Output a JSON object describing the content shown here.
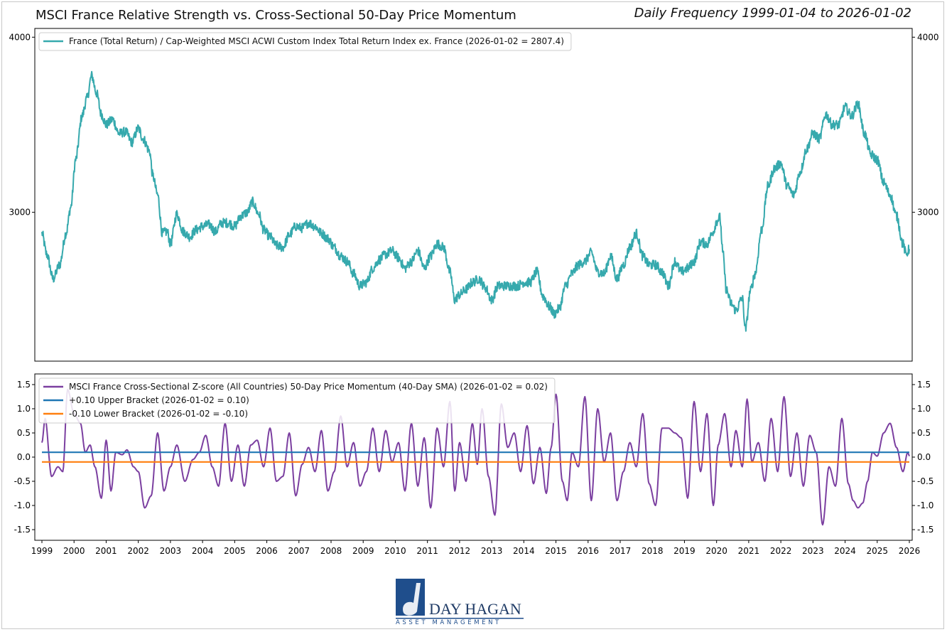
{
  "header": {
    "title": "MSCI France Relative Strength vs. Cross-Sectional 50-Day Price Momentum",
    "subtitle": "Daily Frequency 1999-01-04 to 2026-01-02"
  },
  "logo": {
    "name": "DAY HAGAN",
    "tagline": "ASSET MANAGEMENT",
    "colors": {
      "primary": "#1f4e8c"
    }
  },
  "chart_data": [
    {
      "type": "line",
      "panel": "top",
      "x_range": [
        1999.0,
        2026.0
      ],
      "ylim": [
        2150,
        4050
      ],
      "yticks": [
        "3000",
        "4000"
      ],
      "legend_position": "top-left",
      "grid": false,
      "series": [
        {
          "name": "France (Total Return) / Cap-Weighted MSCI ACWI Custom Index Total Return Index ex. France (2026-01-02 = 2807.4)",
          "color": "#36a9ad",
          "x": [
            1999.0,
            1999.15,
            1999.35,
            1999.55,
            1999.75,
            1999.9,
            2000.05,
            2000.25,
            2000.4,
            2000.55,
            2000.7,
            2000.85,
            2001.0,
            2001.2,
            2001.4,
            2001.6,
            2001.8,
            2002.0,
            2002.15,
            2002.35,
            2002.45,
            2002.6,
            2002.75,
            2002.9,
            2003.0,
            2003.2,
            2003.4,
            2003.6,
            2003.8,
            2004.0,
            2004.2,
            2004.4,
            2004.6,
            2004.8,
            2005.0,
            2005.2,
            2005.4,
            2005.55,
            2005.75,
            2005.9,
            2006.1,
            2006.3,
            2006.5,
            2006.7,
            2006.9,
            2007.1,
            2007.3,
            2007.5,
            2007.7,
            2007.9,
            2008.1,
            2008.3,
            2008.5,
            2008.7,
            2008.9,
            2009.1,
            2009.3,
            2009.5,
            2009.7,
            2009.9,
            2010.1,
            2010.3,
            2010.5,
            2010.7,
            2010.9,
            2011.1,
            2011.3,
            2011.5,
            2011.7,
            2011.85,
            2012.0,
            2012.2,
            2012.4,
            2012.6,
            2012.8,
            2013.0,
            2013.2,
            2013.4,
            2013.6,
            2013.8,
            2014.0,
            2014.2,
            2014.4,
            2014.6,
            2014.8,
            2014.95,
            2015.1,
            2015.3,
            2015.5,
            2015.7,
            2015.9,
            2016.1,
            2016.3,
            2016.5,
            2016.7,
            2016.9,
            2017.1,
            2017.3,
            2017.5,
            2017.7,
            2017.9,
            2018.1,
            2018.3,
            2018.5,
            2018.7,
            2018.9,
            2019.1,
            2019.3,
            2019.5,
            2019.7,
            2019.9,
            2020.0,
            2020.1,
            2020.2,
            2020.3,
            2020.45,
            2020.6,
            2020.8,
            2020.9,
            2021.05,
            2021.2,
            2021.4,
            2021.6,
            2021.8,
            2022.0,
            2022.2,
            2022.4,
            2022.6,
            2022.8,
            2023.0,
            2023.2,
            2023.4,
            2023.6,
            2023.8,
            2024.0,
            2024.2,
            2024.4,
            2024.6,
            2024.8,
            2025.0,
            2025.2,
            2025.4,
            2025.6,
            2025.8,
            2025.9,
            2026.0
          ],
          "y": [
            2880,
            2760,
            2620,
            2700,
            2880,
            3030,
            3300,
            3550,
            3650,
            3780,
            3680,
            3560,
            3500,
            3530,
            3450,
            3460,
            3400,
            3480,
            3420,
            3350,
            3210,
            3100,
            2880,
            2890,
            2820,
            2990,
            2890,
            2860,
            2900,
            2920,
            2930,
            2890,
            2940,
            2940,
            2920,
            2980,
            3000,
            3060,
            2990,
            2900,
            2860,
            2810,
            2800,
            2870,
            2920,
            2910,
            2940,
            2920,
            2880,
            2850,
            2800,
            2750,
            2720,
            2650,
            2580,
            2600,
            2680,
            2730,
            2760,
            2780,
            2740,
            2680,
            2720,
            2780,
            2680,
            2750,
            2820,
            2800,
            2660,
            2500,
            2530,
            2560,
            2600,
            2620,
            2570,
            2500,
            2580,
            2580,
            2580,
            2580,
            2600,
            2600,
            2660,
            2520,
            2460,
            2420,
            2450,
            2580,
            2650,
            2700,
            2720,
            2770,
            2660,
            2650,
            2750,
            2620,
            2700,
            2800,
            2880,
            2750,
            2700,
            2700,
            2660,
            2580,
            2720,
            2660,
            2680,
            2720,
            2830,
            2820,
            2890,
            2950,
            2970,
            2760,
            2560,
            2480,
            2440,
            2510,
            2330,
            2550,
            2650,
            2900,
            3150,
            3250,
            3280,
            3150,
            3100,
            3230,
            3360,
            3450,
            3420,
            3560,
            3500,
            3500,
            3600,
            3550,
            3620,
            3450,
            3330,
            3300,
            3170,
            3100,
            2980,
            2820,
            2760,
            2790
          ]
        }
      ]
    },
    {
      "type": "line",
      "panel": "bottom",
      "x_range": [
        1999.0,
        2026.0
      ],
      "ylim": [
        -1.72,
        1.72
      ],
      "yticks": [
        "1.5",
        "1.0",
        "0.5",
        "0.0",
        "-0.5",
        "-1.0",
        "-1.5"
      ],
      "xticks": [
        "1999",
        "2000",
        "2001",
        "2002",
        "2003",
        "2004",
        "2005",
        "2006",
        "2007",
        "2008",
        "2009",
        "2010",
        "2011",
        "2012",
        "2013",
        "2014",
        "2015",
        "2016",
        "2017",
        "2018",
        "2019",
        "2020",
        "2021",
        "2022",
        "2023",
        "2024",
        "2025",
        "2026"
      ],
      "legend_position": "top-left",
      "grid": false,
      "series": [
        {
          "name": "MSCI France Cross-Sectional Z-score (All Countries) 50-Day Price Momentum (40-Day SMA) (2026-01-02 = 0.02)",
          "color": "#7b3fa0",
          "x": [
            1999.0,
            1999.1,
            1999.3,
            1999.5,
            1999.65,
            1999.8,
            2000.0,
            2000.2,
            2000.35,
            2000.5,
            2000.65,
            2000.85,
            2001.0,
            2001.15,
            2001.3,
            2001.5,
            2001.65,
            2001.85,
            2002.0,
            2002.2,
            2002.4,
            2002.6,
            2002.8,
            2003.0,
            2003.2,
            2003.45,
            2003.7,
            2003.9,
            2004.1,
            2004.3,
            2004.5,
            2004.7,
            2004.9,
            2005.1,
            2005.3,
            2005.5,
            2005.7,
            2005.9,
            2006.1,
            2006.3,
            2006.5,
            2006.7,
            2006.9,
            2007.1,
            2007.3,
            2007.5,
            2007.7,
            2007.9,
            2008.1,
            2008.3,
            2008.5,
            2008.7,
            2008.9,
            2009.1,
            2009.3,
            2009.5,
            2009.7,
            2009.9,
            2010.1,
            2010.3,
            2010.5,
            2010.7,
            2010.9,
            2011.1,
            2011.3,
            2011.5,
            2011.7,
            2011.85,
            2012.0,
            2012.2,
            2012.4,
            2012.55,
            2012.7,
            2012.9,
            2013.1,
            2013.3,
            2013.5,
            2013.7,
            2013.9,
            2014.1,
            2014.3,
            2014.5,
            2014.7,
            2014.85,
            2015.0,
            2015.2,
            2015.35,
            2015.5,
            2015.7,
            2015.9,
            2016.1,
            2016.3,
            2016.5,
            2016.7,
            2016.9,
            2017.1,
            2017.3,
            2017.5,
            2017.7,
            2017.9,
            2018.1,
            2018.3,
            2018.5,
            2018.7,
            2018.9,
            2019.1,
            2019.3,
            2019.5,
            2019.7,
            2019.9,
            2020.05,
            2020.25,
            2020.45,
            2020.6,
            2020.8,
            2020.95,
            2021.1,
            2021.3,
            2021.5,
            2021.7,
            2021.9,
            2022.1,
            2022.3,
            2022.5,
            2022.7,
            2022.9,
            2023.1,
            2023.3,
            2023.5,
            2023.7,
            2023.9,
            2024.1,
            2024.25,
            2024.4,
            2024.55,
            2024.7,
            2024.85,
            2025.0,
            2025.2,
            2025.4,
            2025.6,
            2025.8,
            2025.95,
            2026.0
          ],
          "y": [
            0.3,
            0.8,
            -0.4,
            -0.2,
            -0.3,
            1.4,
            0.9,
            0.7,
            0.1,
            0.25,
            -0.2,
            -0.85,
            0.35,
            -0.7,
            0.1,
            0.05,
            0.15,
            -0.2,
            -0.3,
            -1.05,
            -0.8,
            0.5,
            -0.7,
            -0.2,
            0.25,
            -0.5,
            -0.05,
            0.1,
            0.45,
            -0.2,
            -0.6,
            0.7,
            -0.5,
            0.25,
            -0.6,
            0.25,
            0.35,
            -0.2,
            0.6,
            -0.5,
            -0.4,
            0.5,
            -0.8,
            -0.15,
            0.2,
            -0.3,
            0.55,
            -0.7,
            -0.3,
            0.85,
            -0.2,
            0.3,
            -0.6,
            -0.3,
            0.6,
            -0.3,
            0.55,
            -0.1,
            0.3,
            -0.7,
            0.7,
            -0.6,
            0.4,
            -1.05,
            0.6,
            -0.2,
            1.15,
            -0.7,
            0.3,
            -0.5,
            0.7,
            -0.15,
            1.0,
            -0.4,
            -1.2,
            1.1,
            0.2,
            0.5,
            -0.3,
            0.65,
            -0.55,
            0.2,
            -0.75,
            0.2,
            1.3,
            -0.5,
            -0.9,
            0.1,
            -0.2,
            1.25,
            -0.9,
            1.0,
            -0.1,
            0.5,
            -0.9,
            -0.3,
            0.3,
            -0.2,
            0.9,
            -0.55,
            -1.0,
            0.6,
            0.6,
            0.5,
            0.4,
            -0.85,
            1.15,
            -0.3,
            0.9,
            -1.0,
            0.25,
            0.9,
            -0.2,
            0.55,
            -0.2,
            1.2,
            -0.1,
            0.3,
            -0.5,
            0.8,
            -0.3,
            1.25,
            -0.4,
            0.5,
            -0.6,
            0.45,
            0.1,
            -1.4,
            -0.2,
            -0.6,
            0.8,
            -0.55,
            -0.9,
            -1.05,
            -0.95,
            -0.5,
            0.1,
            0.02,
            0.5,
            0.7,
            0.2,
            -0.3,
            0.1,
            0.02
          ],
          "x_resampled_note": ""
        },
        {
          "name": "+0.10 Upper Bracket (2026-01-02 = 0.10)",
          "color": "#1f77b4",
          "x": [
            1999.0,
            2026.0
          ],
          "y": [
            0.1,
            0.1
          ]
        },
        {
          "name": "-0.10 Lower Bracket (2026-01-02 = -0.10)",
          "color": "#ff7f0e",
          "x": [
            1999.0,
            2026.0
          ],
          "y": [
            -0.1,
            -0.1
          ]
        }
      ]
    }
  ]
}
